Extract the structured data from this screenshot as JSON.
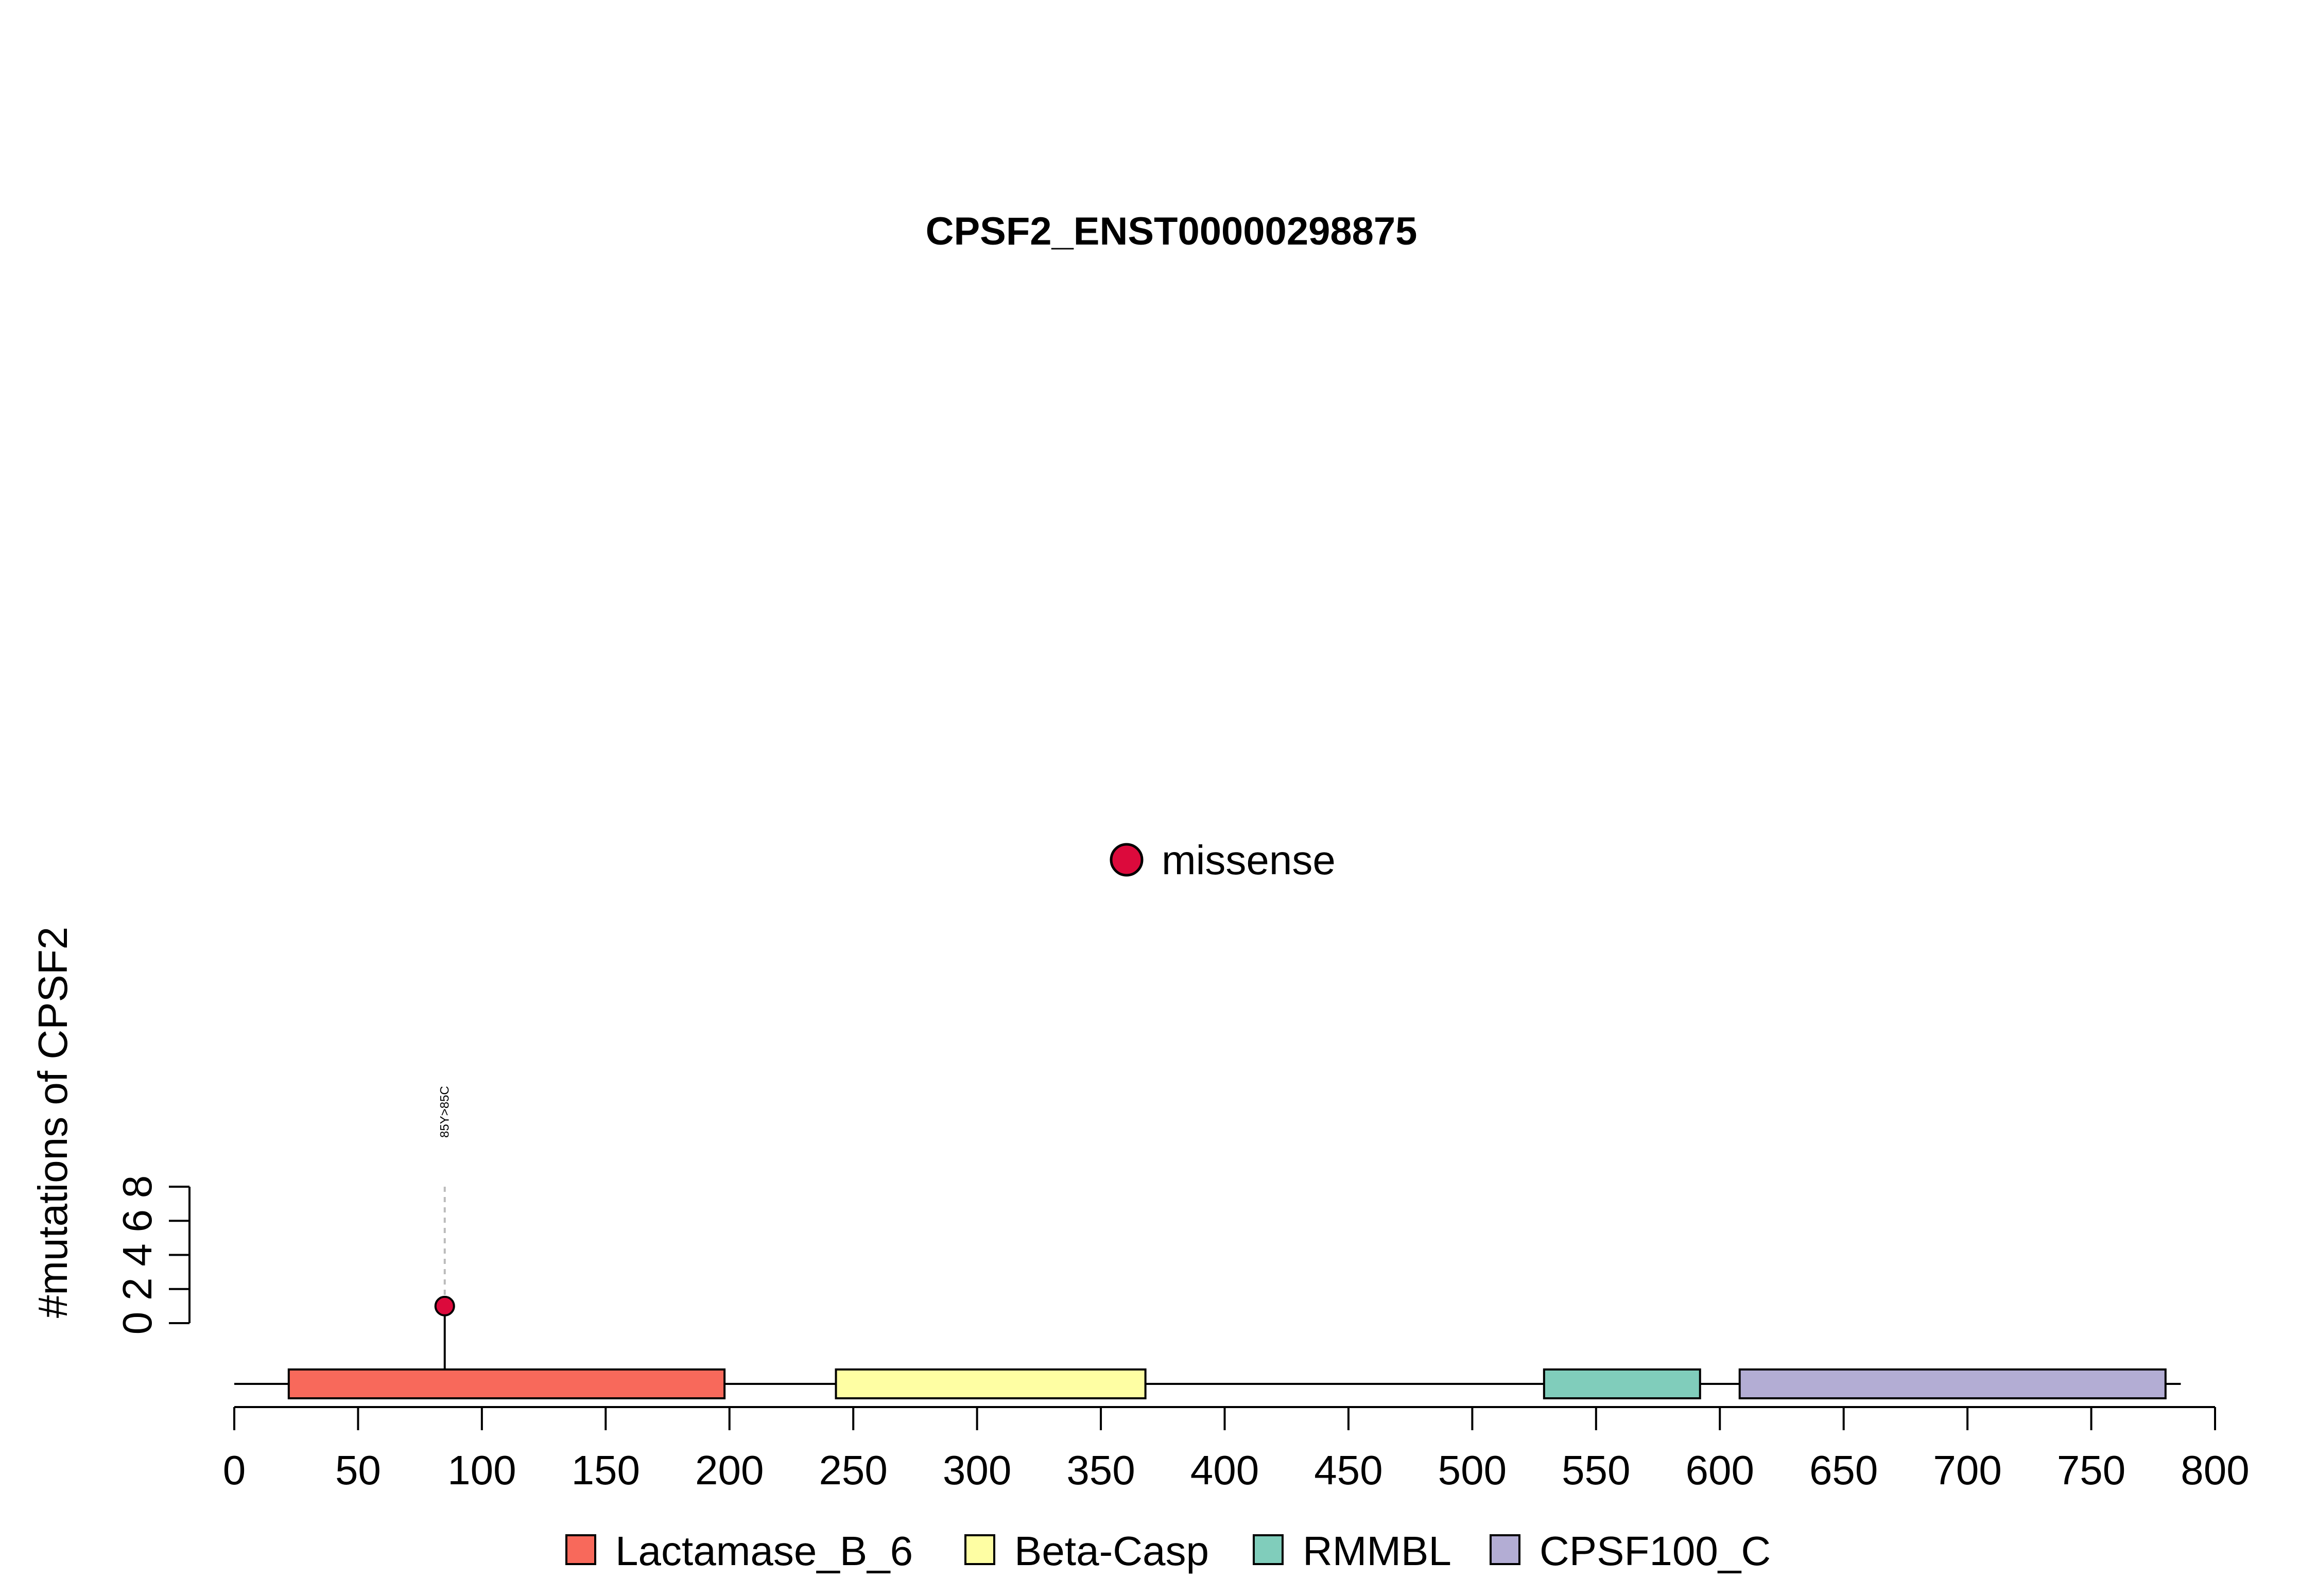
{
  "chart_data": {
    "type": "lollipop",
    "title": "CPSF2_ENST00000298875",
    "ylabel": "#mutations of CPSF2",
    "xlim": [
      0,
      800
    ],
    "x_ticks": [
      0,
      50,
      100,
      150,
      200,
      250,
      300,
      350,
      400,
      450,
      500,
      550,
      600,
      650,
      700,
      750,
      800
    ],
    "ylim": [
      0,
      8
    ],
    "y_ticks": [
      0,
      2,
      4,
      6,
      8
    ],
    "protein_length": 782,
    "mutation_legend": [
      {
        "label": "missense",
        "color": "#DC0A3C"
      }
    ],
    "mutations": [
      {
        "position": 85,
        "count": 1,
        "label": "85Y>85C",
        "type": "missense",
        "color": "#DC0A3C"
      }
    ],
    "domains": [
      {
        "name": "Lactamase_B_6",
        "start": 22,
        "end": 198,
        "color": "#F8695B"
      },
      {
        "name": "Beta-Casp",
        "start": 243,
        "end": 368,
        "color": "#FEFEA3"
      },
      {
        "name": "RMMBL",
        "start": 529,
        "end": 592,
        "color": "#80CDBB"
      },
      {
        "name": "CPSF100_C",
        "start": 608,
        "end": 780,
        "color": "#B3ADD4"
      }
    ]
  }
}
